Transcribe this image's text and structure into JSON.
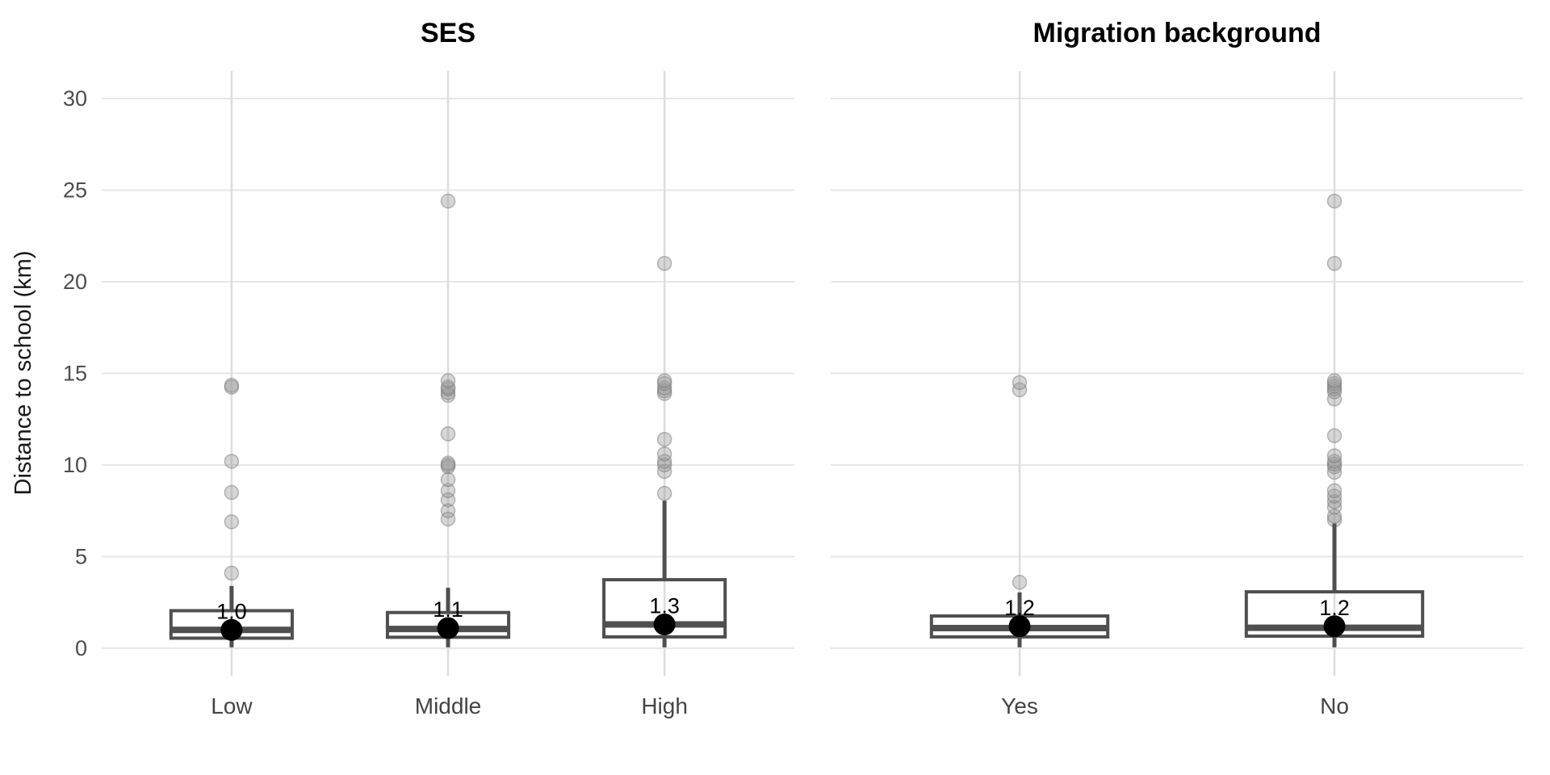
{
  "figure": {
    "background": "#ffffff"
  },
  "chart_data": {
    "type": "boxplot",
    "title": "",
    "ylabel": "Distance to school (km)",
    "xlabel": "",
    "yticks": [
      0,
      5,
      10,
      15,
      20,
      25,
      30
    ],
    "ylim": [
      -1.5,
      31.5
    ],
    "grid": true,
    "legend": "none",
    "panels": [
      {
        "title": "SES",
        "categories": [
          "Low",
          "Middle",
          "High"
        ],
        "boxes": [
          {
            "category": "Low",
            "q1": 0.55,
            "median": 1.0,
            "q3": 2.05,
            "whisker_low": 0.05,
            "whisker_high": 3.4,
            "mean": 1.0,
            "mean_label": "1.0",
            "outliers": [
              4.1,
              6.9,
              8.5,
              10.2,
              14.25,
              14.35
            ]
          },
          {
            "category": "Middle",
            "q1": 0.6,
            "median": 1.05,
            "q3": 1.95,
            "whisker_low": 0.05,
            "whisker_high": 3.3,
            "mean": 1.1,
            "mean_label": "1.1",
            "outliers": [
              7.05,
              7.5,
              8.1,
              8.6,
              9.2,
              9.9,
              10.0,
              10.1,
              11.7,
              13.8,
              13.95,
              14.15,
              14.25,
              14.6,
              24.4
            ]
          },
          {
            "category": "High",
            "q1": 0.62,
            "median": 1.3,
            "q3": 3.74,
            "whisker_low": 0.05,
            "whisker_high": 8.05,
            "mean": 1.3,
            "mean_label": "1.3",
            "outliers": [
              8.45,
              9.65,
              10.0,
              10.2,
              10.6,
              11.4,
              13.9,
              14.05,
              14.2,
              14.45,
              14.6,
              21.0
            ]
          }
        ]
      },
      {
        "title": "Migration background",
        "categories": [
          "Yes",
          "No"
        ],
        "boxes": [
          {
            "category": "Yes",
            "q1": 0.62,
            "median": 1.1,
            "q3": 1.76,
            "whisker_low": 0.05,
            "whisker_high": 3.05,
            "mean": 1.2,
            "mean_label": "1.2",
            "outliers": [
              3.6,
              14.1,
              14.5
            ]
          },
          {
            "category": "No",
            "q1": 0.66,
            "median": 1.12,
            "q3": 3.08,
            "whisker_low": 0.05,
            "whisker_high": 6.8,
            "mean": 1.2,
            "mean_label": "1.2",
            "outliers": [
              7.0,
              7.2,
              7.7,
              8.0,
              8.3,
              8.6,
              9.6,
              9.9,
              10.05,
              10.2,
              10.5,
              11.6,
              13.6,
              14.0,
              14.15,
              14.3,
              14.45,
              14.6,
              21.0,
              24.4
            ]
          }
        ]
      }
    ],
    "colors": {
      "background": "#ffffff",
      "grid_horizontal": "#e7e7e7",
      "grid_vertical": "#dddddd",
      "box_stroke": "#4f4f4f",
      "outlier_fill": "#999999",
      "outlier_stroke": "#777777",
      "mean_fill": "#000000",
      "tick_text": "#4d4d4d",
      "category_text": "#444444",
      "axis_title_text": "#1a1a1a",
      "panel_title_text": "#000000"
    }
  }
}
